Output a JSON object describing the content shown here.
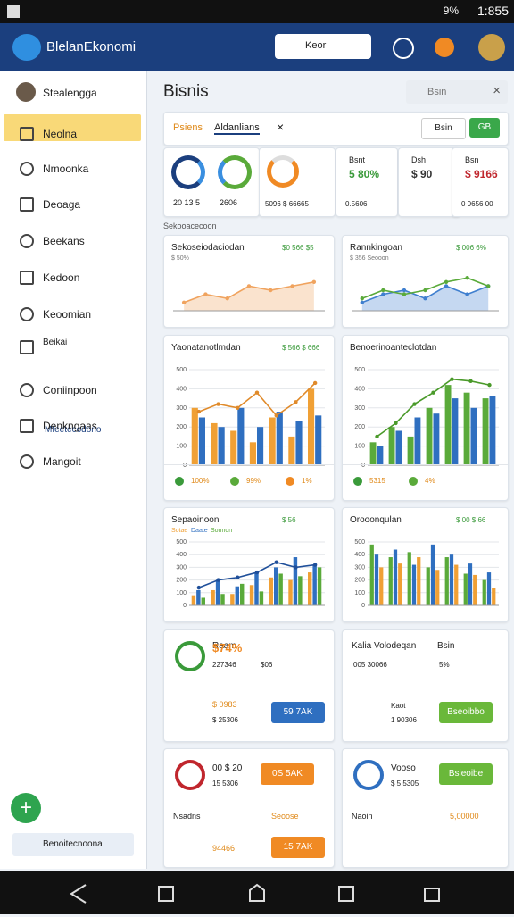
{
  "status": {
    "battery": "9%",
    "time": "1:855"
  },
  "appbar": {
    "title": "BlelanEkonomi",
    "search": "Keor"
  },
  "sidebar": {
    "user": "Stealengga",
    "items": [
      "Neolna",
      "Nmoonka",
      "Deoaga",
      "Beekans",
      "Kedoon",
      "Keoomian",
      "Beikai",
      "Coniinpoon",
      "Denkngaas",
      "Mangoit"
    ],
    "item_sub": "Mfeetecodono",
    "footer": "Benoitecnoona"
  },
  "main": {
    "title": "Bisnis",
    "search": "Bsin",
    "tabs": [
      "Psiens",
      "Aldanlians"
    ],
    "tab_button": "Bsin",
    "tab_button2": "GB",
    "kpis": [
      {
        "a": "20 13 5",
        "b": "2606"
      },
      {
        "a": "5096 $ 66665"
      },
      {
        "title": "Bsnt",
        "value": "5 80%",
        "sub": "0.5606"
      },
      {
        "title": "Dsh",
        "value": "$ 90"
      },
      {
        "title": "Bsn",
        "value": "$ 9166",
        "sub": "0 0656 00"
      }
    ],
    "section": "Sekooacecoon",
    "panels": [
      {
        "title": "Sekoseiodaciodan",
        "value": "$0 566 $5",
        "sub": "$ 50%",
        "ylim": [
          0,
          10
        ],
        "series": [
          {
            "style": "area",
            "color": "#f0a35e",
            "values": [
              2,
              4,
              3,
              6,
              5,
              6,
              7
            ]
          }
        ]
      },
      {
        "title": "Rannkingoan",
        "value": "$ 006 6%",
        "sub": "$ 356 Seooon",
        "ylim": [
          0,
          10
        ],
        "series": [
          {
            "style": "area",
            "color": "#3f7fcf",
            "values": [
              2,
              4,
              5,
              3,
              6,
              4,
              6
            ]
          },
          {
            "style": "line",
            "color": "#5aaa3a",
            "values": [
              3,
              5,
              4,
              5,
              7,
              8,
              6
            ]
          }
        ]
      },
      {
        "title": "Yaonatanotlmdan",
        "value": "$ 566 $ 666",
        "ylim": [
          0,
          500
        ],
        "yticks": [
          0,
          100,
          200,
          300,
          400,
          500
        ],
        "series": [
          {
            "style": "bar",
            "color": "#f0a035",
            "values": [
              300,
              220,
              180,
              120,
              250,
              150,
              400
            ]
          },
          {
            "style": "bar",
            "color": "#2f6fc0",
            "values": [
              250,
              200,
              300,
              200,
              280,
              230,
              260
            ]
          },
          {
            "style": "line",
            "color": "#e08a2a",
            "values": [
              280,
              320,
              300,
              380,
              260,
              330,
              430
            ]
          }
        ],
        "footer": [
          "100%",
          "99%",
          "1%"
        ]
      },
      {
        "title": "Benoerinoanteclotdan",
        "ylim": [
          0,
          500
        ],
        "yticks": [
          0,
          100,
          200,
          300,
          400,
          500
        ],
        "series": [
          {
            "style": "bar",
            "color": "#5aaa3a",
            "values": [
              120,
              200,
              150,
              300,
              420,
              380,
              350
            ]
          },
          {
            "style": "bar",
            "color": "#2f6fc0",
            "values": [
              100,
              180,
              250,
              270,
              350,
              300,
              360
            ]
          },
          {
            "style": "line",
            "color": "#4a9a2a",
            "values": [
              150,
              220,
              320,
              380,
              450,
              440,
              420
            ]
          }
        ],
        "footer": [
          "5315",
          "4%"
        ]
      },
      {
        "title": "Sepaoinoon",
        "value": "$ 56",
        "legend": [
          "Sotae",
          "Daate",
          "Sonnon"
        ],
        "ylim": [
          0,
          500
        ],
        "yticks": [
          0,
          100,
          200,
          300,
          400,
          500
        ],
        "series": [
          {
            "style": "bar",
            "color": "#f0a035",
            "values": [
              80,
              120,
              90,
              160,
              220,
              200,
              260
            ]
          },
          {
            "style": "bar",
            "color": "#2f6fc0",
            "values": [
              120,
              200,
              150,
              260,
              300,
              380,
              320
            ]
          },
          {
            "style": "bar",
            "color": "#5aaa3a",
            "values": [
              60,
              90,
              170,
              110,
              250,
              230,
              300
            ]
          },
          {
            "style": "line",
            "color": "#1f4f9a",
            "values": [
              140,
              200,
              220,
              260,
              340,
              300,
              320
            ]
          }
        ]
      },
      {
        "title": "Orooonqulan",
        "value": "$ 00 $ 66",
        "ylim": [
          0,
          500
        ],
        "yticks": [
          0,
          100,
          200,
          300,
          400,
          500
        ],
        "series": [
          {
            "style": "bar",
            "color": "#5aaa3a",
            "values": [
              480,
              380,
              420,
              300,
              380,
              250,
              200
            ]
          },
          {
            "style": "bar",
            "color": "#2f6fc0",
            "values": [
              400,
              440,
              320,
              480,
              400,
              330,
              260
            ]
          },
          {
            "style": "bar",
            "color": "#f0a035",
            "values": [
              300,
              330,
              380,
              280,
              320,
              240,
              140
            ]
          }
        ]
      }
    ],
    "cards": [
      {
        "title": "Raam",
        "value": "$74%",
        "sub": "227346",
        "sub2": "$06",
        "row": "$ 0983",
        "row2": "$ 25306",
        "button": "59 7AK"
      },
      {
        "title": "Kalia Volodeqan",
        "value": "Bsin",
        "sub": "005 30066",
        "sub2": "5%",
        "note": "Kaot",
        "row2": "1 90306",
        "button": "Bseoibbo"
      },
      {
        "value": "00 $ 20",
        "sub": "15 5306",
        "button": "0S 5AK",
        "label": "Nsadns",
        "label2": "Seoose",
        "row": "94466",
        "button2": "15 7AK"
      },
      {
        "value": "Vooso",
        "sub": "$ 5 5305",
        "button": "Bsieoibe",
        "label": "Naoin",
        "label2": "5,00000"
      }
    ]
  }
}
